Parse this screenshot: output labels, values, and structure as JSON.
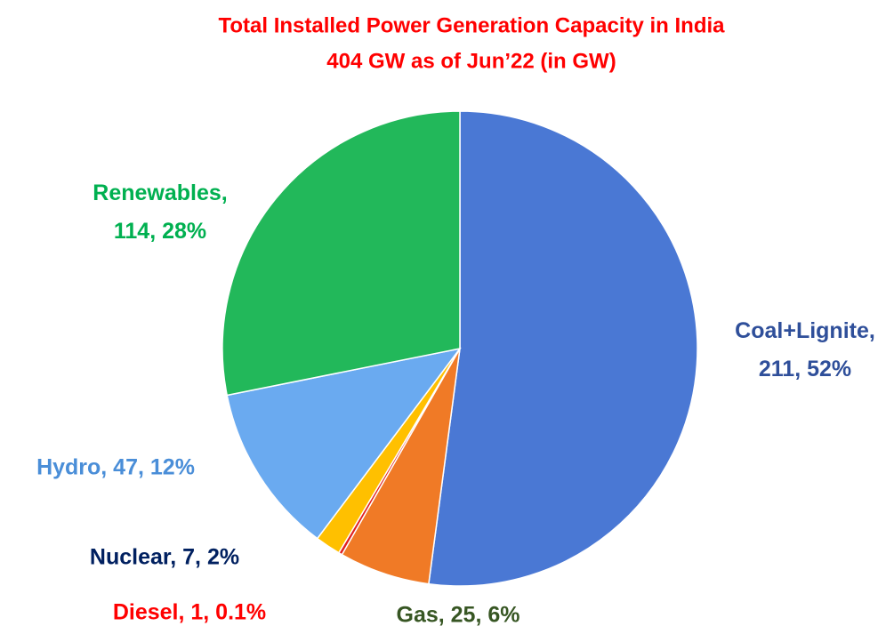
{
  "chart_data": {
    "type": "pie",
    "title": "Total Installed Power Generation Capacity in India",
    "subtitle": "404 GW as of Jun’22  (in GW)",
    "values": [
      211,
      25,
      1,
      7,
      47,
      114
    ],
    "labels": [
      [
        "Coal+Lignite,",
        "211, 52%"
      ],
      [
        "Gas, 25, 6%"
      ],
      [
        "Diesel, 1, 0.1%"
      ],
      [
        "Nuclear, 7, 2%"
      ],
      [
        "Hydro, 47, 12%"
      ],
      [
        "Renewables,",
        "114, 28%"
      ]
    ],
    "colors": [
      "#4a78d4",
      "#f07a26",
      "#e02020",
      "#ffc000",
      "#6aaaf0",
      "#22b85a"
    ],
    "label_colors": [
      "#2f4f9a",
      "#375623",
      "#ff0000",
      "#002060",
      "#4a8ed8",
      "#00b050"
    ]
  }
}
